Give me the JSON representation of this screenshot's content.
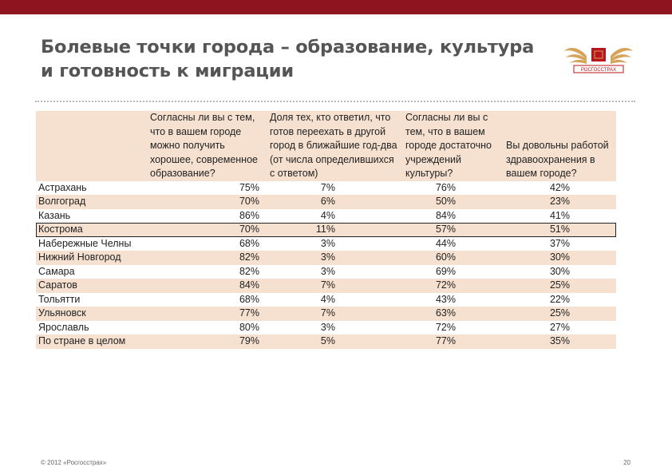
{
  "slide": {
    "title_line1": "Болевые точки города – образование, культура",
    "title_line2": "и готовность к миграции",
    "footer": "© 2012 «Росгосстрах»",
    "page_number": "20",
    "logo_text": "РОСГОССТРАХ"
  },
  "colors": {
    "topbar": "#8e1520",
    "row_band": "#f6e1d0",
    "logo_red": "#b8151c",
    "logo_gold": "#d6a35a"
  },
  "table": {
    "headers": [
      "",
      "Согласны ли вы с тем, что в вашем городе можно получить хорошее, современное образование?",
      "Доля тех, кто ответил, что готов переехать в другой город в ближайшие год-два (от числа определившихся с ответом)",
      "Согласны ли вы с тем, что в вашем городе достаточно учреждений культуры?",
      "Вы довольны работой здравоохранения в вашем городе?"
    ],
    "rows": [
      [
        "Астрахань",
        "75%",
        "7%",
        "76%",
        "42%"
      ],
      [
        "Волгоград",
        "70%",
        "6%",
        "50%",
        "23%"
      ],
      [
        "Казань",
        "86%",
        "4%",
        "84%",
        "41%"
      ],
      [
        "Кострома",
        "70%",
        "11%",
        "57%",
        "51%"
      ],
      [
        "Набережные Челны",
        "68%",
        "3%",
        "44%",
        "37%"
      ],
      [
        "Нижний Новгород",
        "82%",
        "3%",
        "60%",
        "30%"
      ],
      [
        "Самара",
        "82%",
        "3%",
        "69%",
        "30%"
      ],
      [
        "Саратов",
        "84%",
        "7%",
        "72%",
        "25%"
      ],
      [
        "Тольятти",
        "68%",
        "4%",
        "43%",
        "22%"
      ],
      [
        "Ульяновск",
        "77%",
        "7%",
        "63%",
        "25%"
      ],
      [
        "Ярославль",
        "80%",
        "3%",
        "72%",
        "27%"
      ],
      [
        "По стране в целом",
        "79%",
        "5%",
        "77%",
        "35%"
      ]
    ]
  }
}
